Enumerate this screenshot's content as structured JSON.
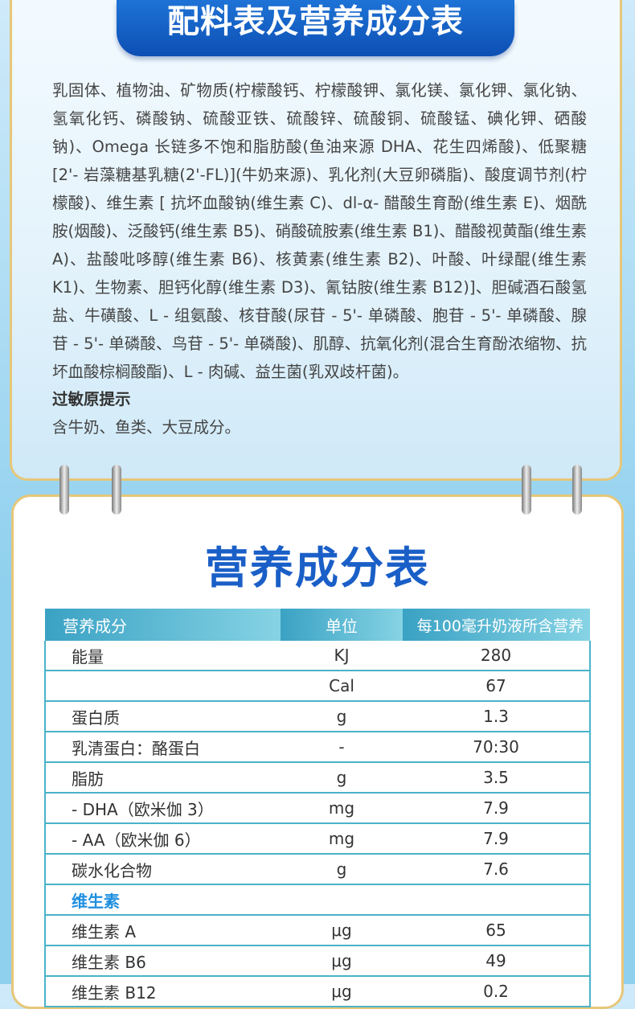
{
  "header": {
    "title": "配料表及营养成分表"
  },
  "ingredients": {
    "text": "乳固体、植物油、矿物质(柠檬酸钙、柠檬酸钾、氯化镁、氯化钾、氯化钠、氢氧化钙、磷酸钠、硫酸亚铁、硫酸锌、硫酸铜、硫酸锰、碘化钾、硒酸钠)、Omega 长链多不饱和脂肪酸(鱼油来源 DHA、花生四烯酸)、低聚糖 [2'- 岩藻糖基乳糖(2'-FL)](牛奶来源)、乳化剂(大豆卵磷脂)、酸度调节剂(柠檬酸)、维生素 [ 抗坏血酸钠(维生素 C)、dl-α- 醋酸生育酚(维生素 E)、烟酰胺(烟酸)、泛酸钙(维生素 B5)、硝酸硫胺素(维生素 B1)、醋酸视黄酯(维生素 A)、盐酸吡哆醇(维生素 B6)、核黄素(维生素 B2)、叶酸、叶绿醌(维生素 K1)、生物素、胆钙化醇(维生素 D3)、氰钴胺(维生素 B12)]、胆碱酒石酸氢盐、牛磺酸、L - 组氨酸、核苷酸(尿苷 - 5'- 单磷酸、胞苷 - 5'- 单磷酸、腺苷 - 5'- 单磷酸、鸟苷 - 5'- 单磷酸)、肌醇、抗氧化剂(混合生育酚浓缩物、抗坏血酸棕榈酸酯)、L - 肉碱、益生菌(乳双歧杆菌)。",
    "allergen_title": "过敏原提示",
    "allergen_text": "含牛奶、鱼类、大豆成分。"
  },
  "nutrition": {
    "title": "营养成分表",
    "columns": [
      "营养成分",
      "单位",
      "每100毫升奶液所含营养"
    ],
    "rows": [
      {
        "name": "能量",
        "unit": "KJ",
        "value": "280"
      },
      {
        "unit": "Cal",
        "value": "67"
      },
      {
        "name": "蛋白质",
        "unit": "g",
        "value": "1.3"
      },
      {
        "name": "乳清蛋白：酪蛋白",
        "unit": "-",
        "value": "70:30"
      },
      {
        "name": "脂肪",
        "unit": "g",
        "value": "3.5"
      },
      {
        "name": "- DHA（欧米伽 3）",
        "unit": "mg",
        "value": "7.9"
      },
      {
        "name": "- AA（欧米伽 6）",
        "unit": "mg",
        "value": "7.9"
      },
      {
        "name": "碳水化合物",
        "unit": "g",
        "value": "7.6"
      },
      {
        "section": "维生素"
      },
      {
        "name": "维生素 A",
        "unit": "μg",
        "value": "65"
      },
      {
        "name": "维生素 B6",
        "unit": "μg",
        "value": "49"
      },
      {
        "name": "维生素 B12",
        "unit": "μg",
        "value": "0.2"
      }
    ]
  }
}
